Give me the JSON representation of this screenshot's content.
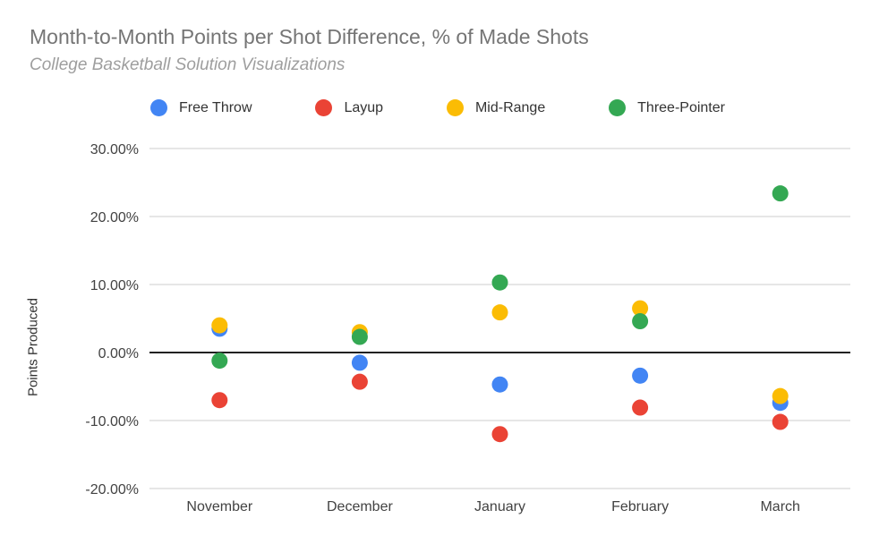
{
  "chart_data": {
    "type": "scatter",
    "title": "Month-to-Month Points per Shot Difference, % of Made Shots",
    "subtitle": "College Basketball Solution Visualizations",
    "ylabel": "Points Produced",
    "xlabel": "",
    "categories": [
      "November",
      "December",
      "January",
      "February",
      "March"
    ],
    "y_tick_labels": [
      "30.00%",
      "20.00%",
      "10.00%",
      "0.00%",
      "-10.00%",
      "-20.00%"
    ],
    "y_tick_values": [
      30,
      20,
      10,
      0,
      -10,
      -20
    ],
    "ylim": [
      -20,
      30
    ],
    "grid": true,
    "legend_position": "top",
    "series": [
      {
        "name": "Free Throw",
        "color": "#4285F4",
        "values": [
          3.5,
          -1.5,
          -4.7,
          -3.4,
          -7.4
        ]
      },
      {
        "name": "Layup",
        "color": "#EA4335",
        "values": [
          -7.0,
          -4.3,
          -12.0,
          -8.1,
          -10.2
        ]
      },
      {
        "name": "Mid-Range",
        "color": "#FBBC04",
        "values": [
          4.0,
          3.0,
          5.9,
          6.5,
          -6.4
        ]
      },
      {
        "name": "Three-Pointer",
        "color": "#34A853",
        "values": [
          -1.2,
          2.3,
          10.3,
          4.6,
          23.4
        ]
      }
    ]
  },
  "colors": {
    "background": "#ffffff",
    "title_text": "#757575",
    "subtitle_text": "#9e9e9e",
    "gridline": "#e6e6e6",
    "zero_line": "#212121",
    "axis_text": "#424242"
  }
}
